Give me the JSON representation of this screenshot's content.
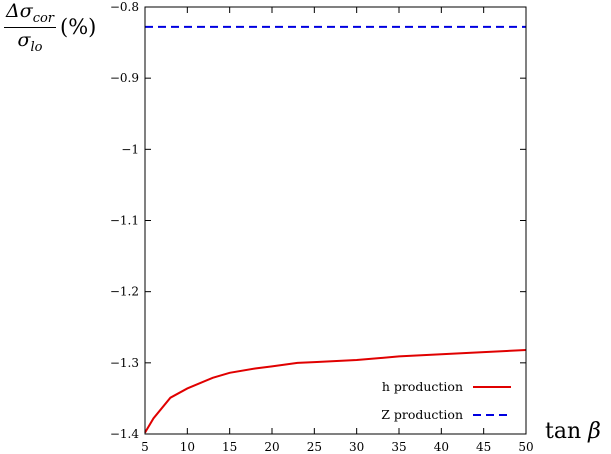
{
  "chart_data": {
    "type": "line",
    "ylabel": {
      "numerator_prefix": "Δσ",
      "numerator_sub": "cor",
      "denominator_prefix": "σ",
      "denominator_sub": "lo",
      "unit": "(%)"
    },
    "xlabel": {
      "fn": "tan",
      "var": "β"
    },
    "xlim": [
      5,
      50
    ],
    "ylim": [
      -1.4,
      -0.8
    ],
    "xticks": [
      5,
      10,
      15,
      20,
      25,
      30,
      35,
      40,
      45,
      50
    ],
    "yticks": [
      -1.4,
      -1.3,
      -1.2,
      -1.1,
      -1,
      -0.9,
      -0.8
    ],
    "ytick_labels": [
      "−1.4",
      "−1.3",
      "−1.2",
      "−1.1",
      "−1",
      "−0.9",
      "−0.8"
    ],
    "grid": false,
    "legend_position": "bottom-right",
    "series": [
      {
        "name": "h production",
        "color": "#e00000",
        "style": "solid",
        "x": [
          5,
          6,
          8,
          10,
          13,
          15,
          18,
          20,
          23,
          25,
          30,
          35,
          40,
          45,
          50
        ],
        "y": [
          -1.398,
          -1.378,
          -1.349,
          -1.336,
          -1.321,
          -1.314,
          -1.308,
          -1.305,
          -1.3,
          -1.299,
          -1.296,
          -1.291,
          -1.288,
          -1.285,
          -1.282
        ]
      },
      {
        "name": "Z production",
        "color": "#0000e0",
        "style": "dashed",
        "x": [
          5,
          50
        ],
        "y": [
          -0.828,
          -0.828
        ]
      }
    ]
  }
}
